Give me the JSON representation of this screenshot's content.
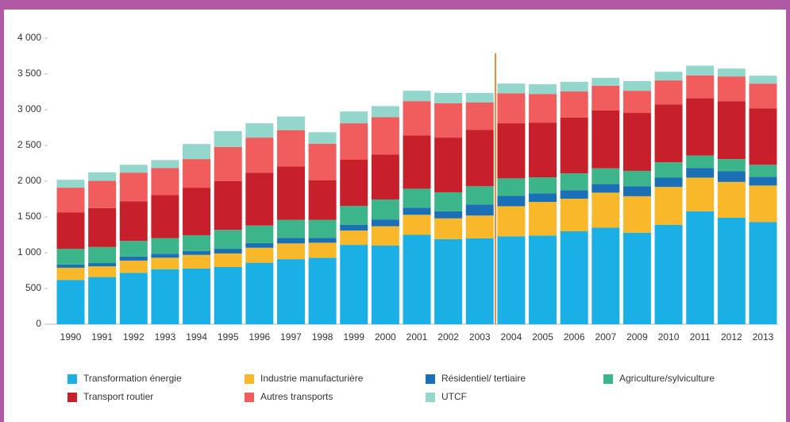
{
  "chart_data": {
    "type": "stacked_bar",
    "categories": [
      "1990",
      "1991",
      "1992",
      "1993",
      "1994",
      "1995",
      "1996",
      "1997",
      "1998",
      "1999",
      "2000",
      "2001",
      "2002",
      "2003",
      "2004",
      "2005",
      "2006",
      "2007",
      "2009",
      "2010",
      "2011",
      "2012",
      "2013"
    ],
    "series": [
      {
        "name": "Transformation énergie",
        "color": "#1ab0e6",
        "values": [
          620,
          660,
          720,
          770,
          780,
          800,
          860,
          910,
          930,
          1110,
          1100,
          1250,
          1190,
          1200,
          1230,
          1240,
          1300,
          1350,
          1280,
          1390,
          1580,
          1490,
          1430
        ]
      },
      {
        "name": "Industrie manufacturière",
        "color": "#f8b82a",
        "values": [
          170,
          150,
          170,
          160,
          190,
          190,
          210,
          220,
          210,
          200,
          270,
          280,
          290,
          320,
          420,
          470,
          455,
          490,
          510,
          530,
          470,
          500,
          510
        ]
      },
      {
        "name": "Résidentiel/ tertiaire",
        "color": "#1a6fb5",
        "values": [
          45,
          45,
          55,
          55,
          55,
          65,
          65,
          75,
          65,
          80,
          95,
          100,
          100,
          155,
          145,
          120,
          120,
          120,
          140,
          130,
          135,
          150,
          120
        ]
      },
      {
        "name": "Agriculture/sylviculture",
        "color": "#3cb58a",
        "values": [
          220,
          225,
          220,
          220,
          220,
          265,
          245,
          255,
          255,
          265,
          280,
          265,
          265,
          255,
          245,
          225,
          235,
          220,
          215,
          215,
          175,
          170,
          170
        ]
      },
      {
        "name": "Transport routier",
        "color": "#c7202a",
        "values": [
          510,
          545,
          555,
          600,
          665,
          680,
          740,
          745,
          555,
          645,
          630,
          745,
          765,
          790,
          770,
          765,
          780,
          810,
          810,
          810,
          800,
          810,
          790
        ]
      },
      {
        "name": "Autres transports",
        "color": "#f15d5d",
        "values": [
          345,
          380,
          400,
          380,
          400,
          480,
          490,
          510,
          510,
          510,
          520,
          480,
          480,
          380,
          420,
          400,
          365,
          345,
          310,
          335,
          320,
          345,
          345
        ]
      },
      {
        "name": "UTCF",
        "color": "#93d7cc",
        "values": [
          110,
          120,
          110,
          110,
          210,
          220,
          200,
          190,
          160,
          165,
          155,
          145,
          145,
          135,
          135,
          135,
          135,
          110,
          135,
          120,
          135,
          110,
          110
        ]
      }
    ],
    "ylim": [
      0,
      4000
    ],
    "yticks": [
      0,
      500,
      {
        "value": 1000,
        "label": "1 000"
      },
      {
        "value": 1500,
        "label": "1 500"
      },
      {
        "value": 2000,
        "label": "2 000"
      },
      {
        "value": 2500,
        "label": "2 500"
      },
      {
        "value": 3000,
        "label": "3 000"
      },
      {
        "value": 3500,
        "label": "3 500"
      },
      {
        "value": 4000,
        "label": "4 000"
      }
    ],
    "grid": false
  }
}
